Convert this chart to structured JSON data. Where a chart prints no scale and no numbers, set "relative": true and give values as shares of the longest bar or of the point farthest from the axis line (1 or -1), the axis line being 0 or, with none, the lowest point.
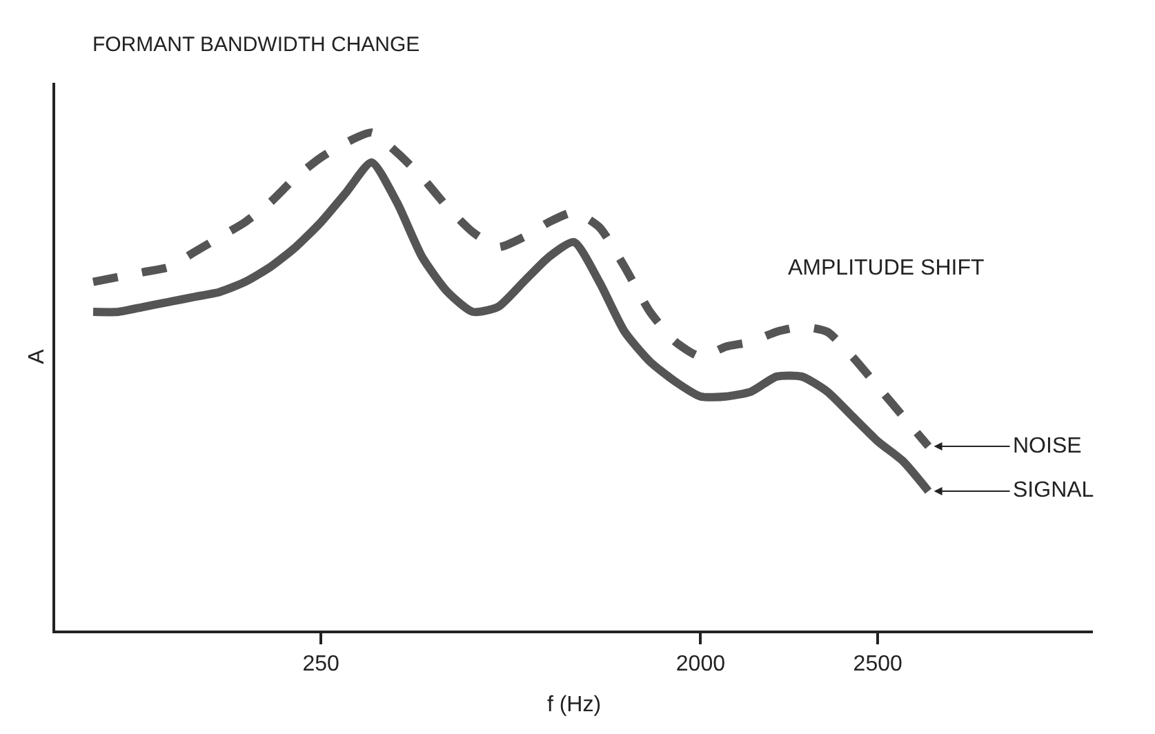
{
  "chart_data": {
    "type": "line",
    "title": "FORMANT BANDWIDTH CHANGE",
    "xlabel": "f (Hz)",
    "ylabel": "A",
    "relative": true,
    "legend": false,
    "marker": "none",
    "categories": [
      null,
      null,
      null,
      null,
      null,
      null,
      null,
      null,
      null,
      null,
      "250",
      null,
      null,
      null,
      null,
      null,
      null,
      null,
      null,
      null,
      null,
      null,
      null,
      null,
      null,
      "2000",
      null,
      null,
      null,
      null,
      null,
      null,
      "2500",
      null,
      null,
      null,
      null,
      null,
      null,
      null,
      null
    ],
    "annotations": [
      "AMPLITUDE SHIFT"
    ],
    "series": [
      {
        "name": "NOISE",
        "color": "#555555",
        "line_style": "dashed",
        "values": [
          null,
          0.7,
          0.71,
          0.72,
          0.73,
          0.76,
          0.79,
          0.82,
          0.86,
          0.91,
          0.95,
          0.98,
          1.0,
          0.96,
          0.91,
          0.85,
          0.8,
          0.77,
          0.79,
          0.82,
          0.84,
          0.81,
          0.73,
          0.64,
          0.58,
          0.55,
          0.57,
          0.58,
          0.6,
          0.61,
          0.6,
          0.55,
          0.49,
          0.43,
          0.37,
          null,
          null,
          null,
          null,
          null,
          null
        ]
      },
      {
        "name": "SIGNAL",
        "color": "#555555",
        "line_style": "solid",
        "values": [
          null,
          0.64,
          0.64,
          0.65,
          0.66,
          0.67,
          0.68,
          0.7,
          0.73,
          0.77,
          0.82,
          0.88,
          0.94,
          0.86,
          0.75,
          0.68,
          0.64,
          0.65,
          0.7,
          0.75,
          0.78,
          0.7,
          0.6,
          0.54,
          0.5,
          0.47,
          0.47,
          0.48,
          0.51,
          0.51,
          0.48,
          0.43,
          0.38,
          0.34,
          0.28,
          null,
          null,
          null,
          null,
          null,
          null
        ]
      }
    ]
  }
}
